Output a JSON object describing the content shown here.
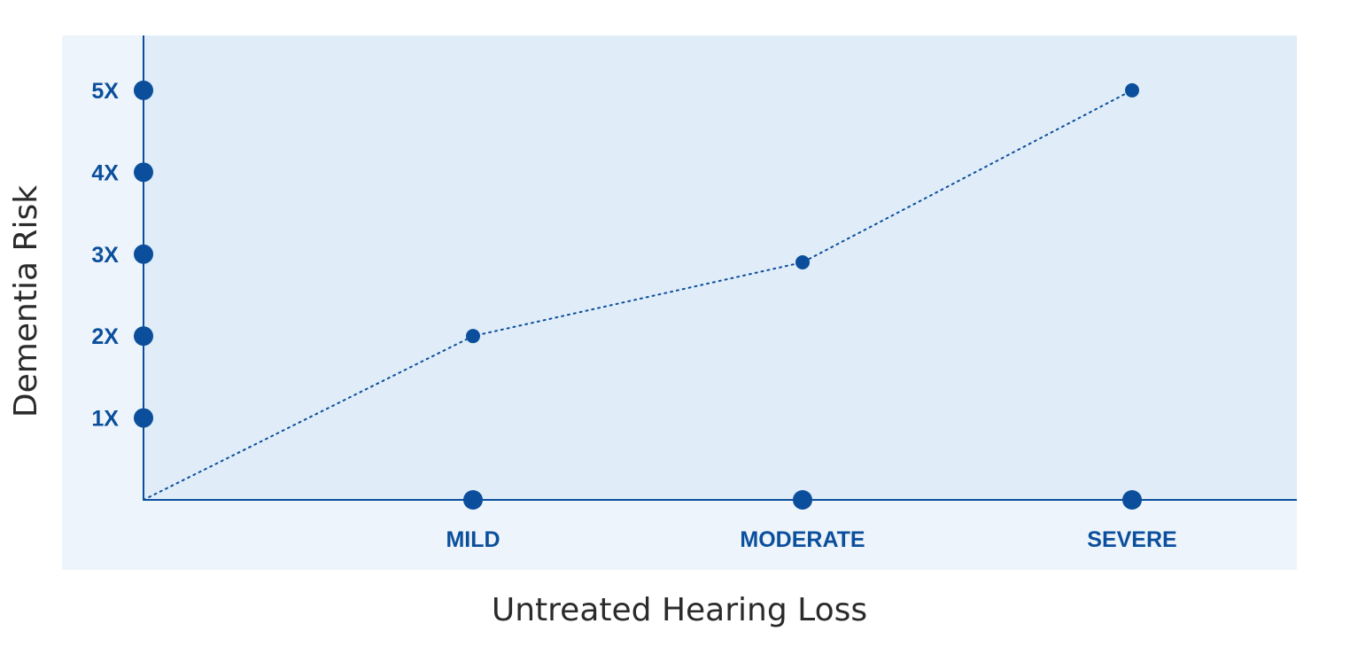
{
  "chart_data": {
    "type": "line",
    "title": "",
    "xlabel": "Untreated Hearing Loss",
    "ylabel": "Dementia Risk",
    "categories": [
      "MILD",
      "MODERATE",
      "SEVERE"
    ],
    "y_ticks": [
      "1X",
      "2X",
      "3X",
      "4X",
      "5X"
    ],
    "y_tick_values": [
      1,
      2,
      3,
      4,
      5
    ],
    "series": [
      {
        "x": [
          0,
          1,
          2,
          3
        ],
        "values": [
          0,
          2,
          2.9,
          5
        ]
      }
    ],
    "ylim": [
      0,
      5.67
    ],
    "grid": false,
    "line_style": "dotted",
    "colors": {
      "accent": "#0b4f9c",
      "plot_background": "#e0ecf8",
      "panel_background": "#edf4fb",
      "axis": "#0b4f9c",
      "title_text": "#2b2b2b"
    }
  }
}
